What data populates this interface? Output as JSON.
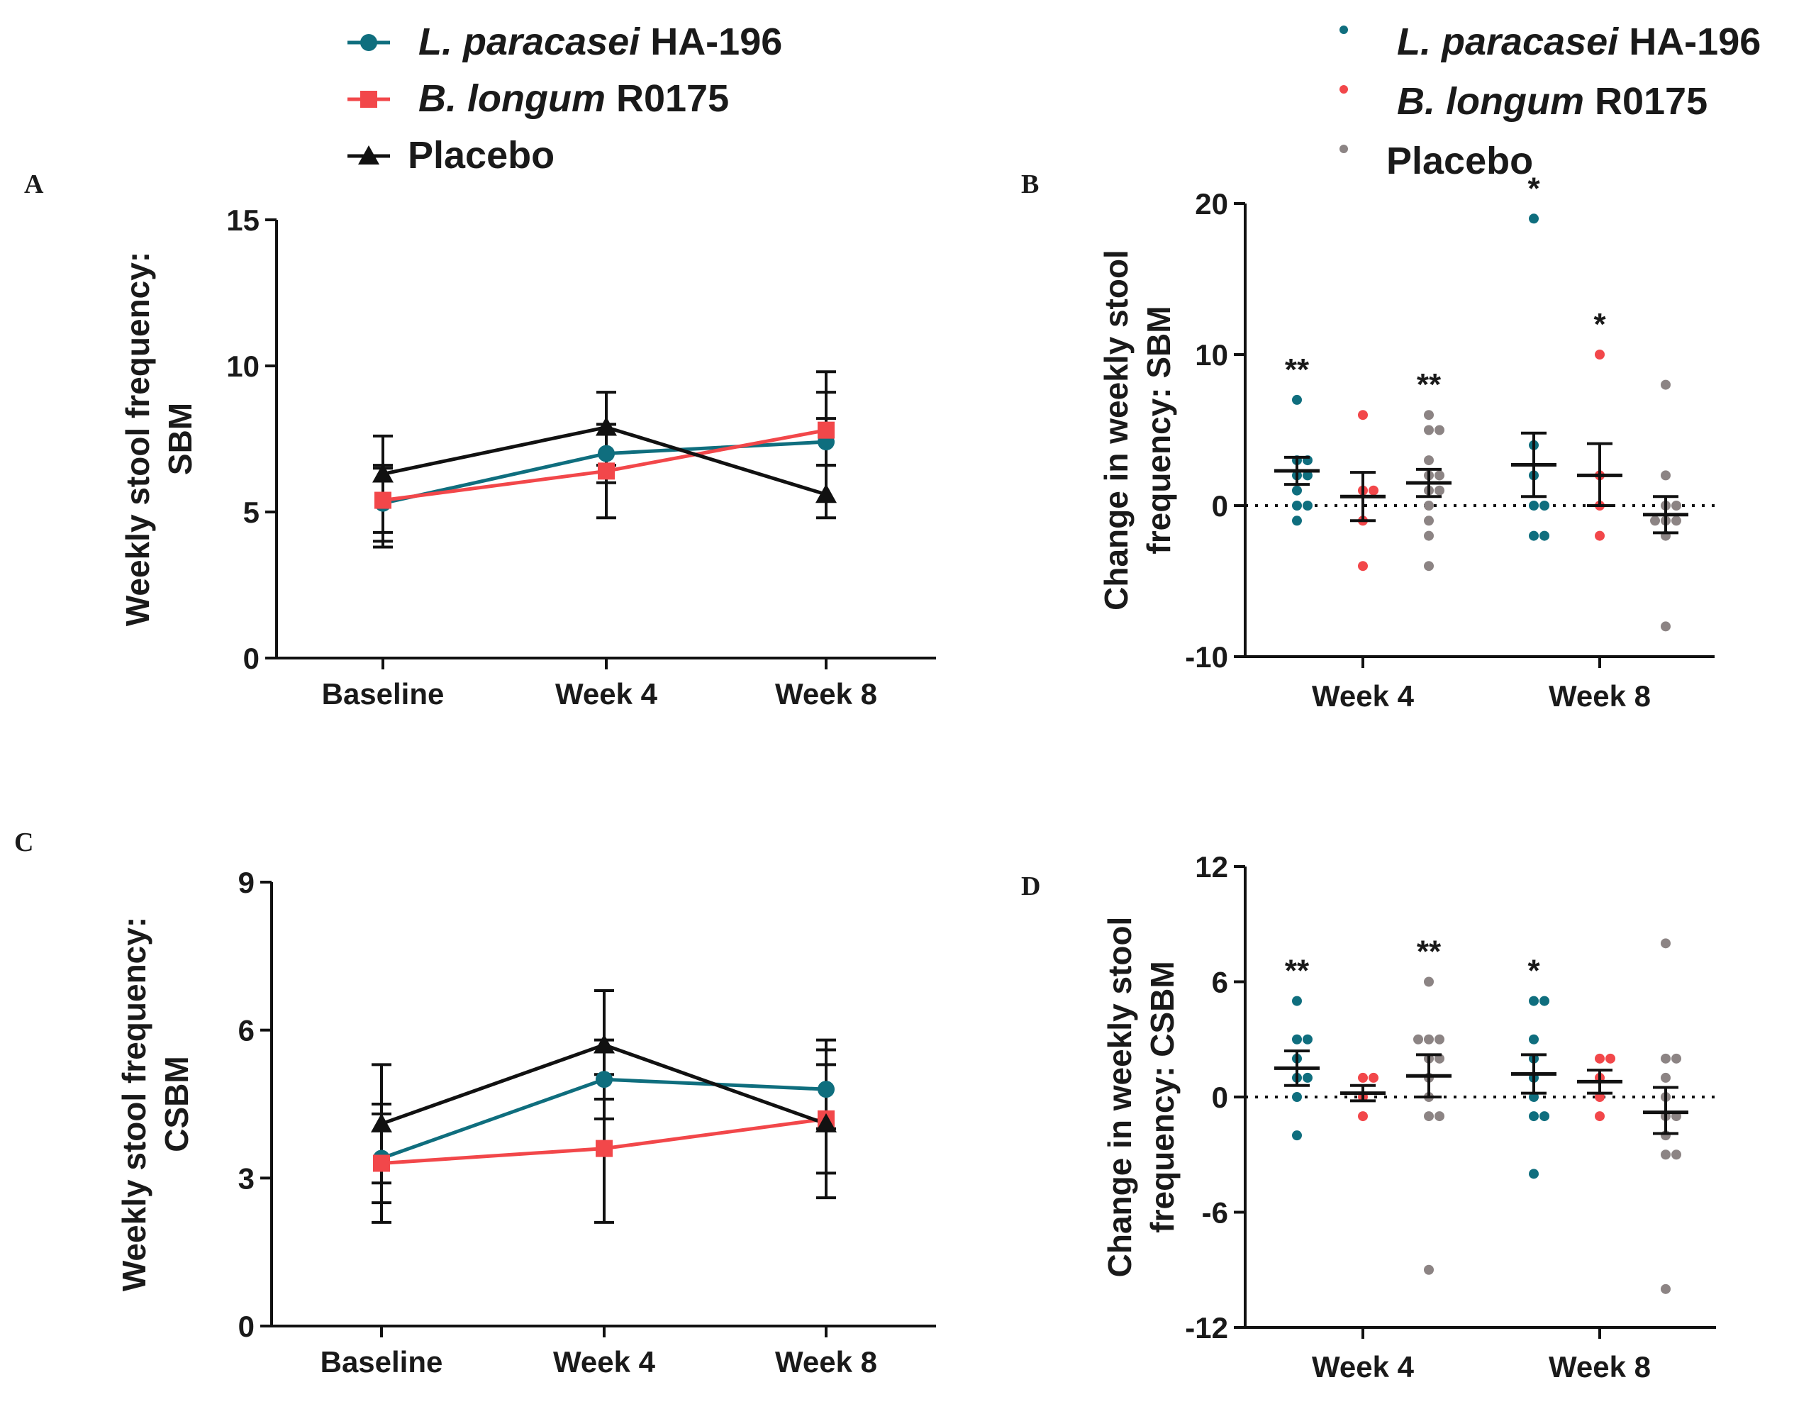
{
  "colors": {
    "la": "#0f6e7e",
    "bl": "#f2474a",
    "pl": "#111111",
    "pl_dot": "#8c8484",
    "axis": "#111111"
  },
  "legend_lines": {
    "items": [
      {
        "italic": "L. paracasei",
        "rest": " HA-196",
        "color": "la",
        "marker": "circle"
      },
      {
        "italic": "B. longum",
        "rest": " R0175",
        "color": "bl",
        "marker": "square"
      },
      {
        "italic": "",
        "rest": "Placebo",
        "color": "pl",
        "marker": "triangle"
      }
    ]
  },
  "legend_dots": {
    "items": [
      {
        "italic": "L. paracasei",
        "rest": " HA-196",
        "color": "la"
      },
      {
        "italic": "B. longum",
        "rest": " R0175",
        "color": "bl"
      },
      {
        "italic": "",
        "rest": "Placebo",
        "color": "pl_dot"
      }
    ]
  },
  "chart_data": [
    {
      "panel": "A",
      "type": "line",
      "ylabel_lines": [
        "Weekly stool frequency:",
        "SBM"
      ],
      "categories": [
        "Baseline",
        "Week 4",
        "Week 8"
      ],
      "ylim": [
        0,
        15
      ],
      "yticks": [
        0,
        5,
        10,
        15
      ],
      "series": [
        {
          "name": "L. paracasei HA-196",
          "color": "la",
          "marker": "circle",
          "values": [
            5.3,
            7.0,
            7.4
          ],
          "err_low": [
            4.0,
            6.0,
            6.6
          ],
          "err_high": [
            6.6,
            8.0,
            8.2
          ]
        },
        {
          "name": "B. longum R0175",
          "color": "bl",
          "marker": "square",
          "values": [
            5.4,
            6.4,
            7.8
          ],
          "err_low": [
            4.3,
            4.8,
            6.6
          ],
          "err_high": [
            6.5,
            8.0,
            9.1
          ]
        },
        {
          "name": "Placebo",
          "color": "pl",
          "marker": "triangle",
          "values": [
            6.3,
            7.9,
            5.6
          ],
          "err_low": [
            3.8,
            6.6,
            4.8
          ],
          "err_high": [
            7.6,
            9.1,
            9.8
          ]
        }
      ]
    },
    {
      "panel": "B",
      "type": "scatter",
      "ylabel_lines": [
        "Change in weekly stool",
        "frequency: SBM"
      ],
      "categories": [
        "Week 4",
        "Week 8"
      ],
      "ylim": [
        -10,
        20
      ],
      "yticks": [
        -10,
        0,
        10,
        20
      ],
      "groups": [
        {
          "cat": 0,
          "offset": -1,
          "color": "la",
          "points": [
            7,
            3,
            3,
            2,
            2,
            1,
            0,
            0,
            -1
          ],
          "mean": 2.3,
          "sem_low": 1.4,
          "sem_high": 3.2,
          "sig": "**"
        },
        {
          "cat": 0,
          "offset": 0,
          "color": "bl",
          "points": [
            6,
            1,
            1,
            -1,
            -4
          ],
          "mean": 0.6,
          "sem_low": -1.0,
          "sem_high": 2.2,
          "sig": ""
        },
        {
          "cat": 0,
          "offset": 1,
          "color": "pl_dot",
          "points": [
            6,
            5,
            5,
            3,
            2,
            2,
            1,
            1,
            0,
            -1,
            -2,
            -4
          ],
          "mean": 1.5,
          "sem_low": 0.6,
          "sem_high": 2.4,
          "sig": "**"
        },
        {
          "cat": 1,
          "offset": -1,
          "color": "la",
          "points": [
            19,
            4,
            2,
            0,
            0,
            -2,
            -2
          ],
          "mean": 2.7,
          "sem_low": 0.6,
          "sem_high": 4.8,
          "sig": "*"
        },
        {
          "cat": 1,
          "offset": 0,
          "color": "bl",
          "points": [
            10,
            2,
            0,
            -2
          ],
          "mean": 2.0,
          "sem_low": 0.0,
          "sem_high": 4.1,
          "sig": "*"
        },
        {
          "cat": 1,
          "offset": 1,
          "color": "pl_dot",
          "points": [
            8,
            2,
            0,
            0,
            -1,
            -1,
            -1,
            -2,
            -8
          ],
          "mean": -0.6,
          "sem_low": -1.8,
          "sem_high": 0.6,
          "sig": ""
        }
      ]
    },
    {
      "panel": "C",
      "type": "line",
      "ylabel_lines": [
        "Weekly stool frequency:",
        "CSBM"
      ],
      "categories": [
        "Baseline",
        "Week 4",
        "Week 8"
      ],
      "ylim": [
        0,
        9
      ],
      "yticks": [
        0,
        3,
        6,
        9
      ],
      "series": [
        {
          "name": "L. paracasei HA-196",
          "color": "la",
          "marker": "circle",
          "values": [
            3.4,
            5.0,
            4.8
          ],
          "err_low": [
            2.5,
            4.2,
            4.0
          ],
          "err_high": [
            4.3,
            5.8,
            5.6
          ]
        },
        {
          "name": "B. longum R0175",
          "color": "bl",
          "marker": "square",
          "values": [
            3.3,
            3.6,
            4.2
          ],
          "err_low": [
            2.1,
            2.1,
            2.6
          ],
          "err_high": [
            4.5,
            5.1,
            5.8
          ]
        },
        {
          "name": "Placebo",
          "color": "pl",
          "marker": "triangle",
          "values": [
            4.1,
            5.7,
            4.1
          ],
          "err_low": [
            2.9,
            4.6,
            3.1
          ],
          "err_high": [
            5.3,
            6.8,
            5.3
          ]
        }
      ]
    },
    {
      "panel": "D",
      "type": "scatter",
      "ylabel_lines": [
        "Change in weekly stool",
        "frequency: CSBM"
      ],
      "categories": [
        "Week 4",
        "Week 8"
      ],
      "ylim": [
        -12,
        12
      ],
      "yticks": [
        -12,
        -6,
        0,
        6,
        12
      ],
      "groups": [
        {
          "cat": 0,
          "offset": -1,
          "color": "la",
          "points": [
            5,
            3,
            3,
            2,
            1,
            1,
            0,
            -2
          ],
          "mean": 1.5,
          "sem_low": 0.6,
          "sem_high": 2.4,
          "sig": "**"
        },
        {
          "cat": 0,
          "offset": 0,
          "color": "bl",
          "points": [
            1,
            1,
            0,
            -1
          ],
          "mean": 0.2,
          "sem_low": -0.2,
          "sem_high": 0.6,
          "sig": ""
        },
        {
          "cat": 0,
          "offset": 1,
          "color": "pl_dot",
          "points": [
            6,
            3,
            3,
            3,
            2,
            2,
            1,
            0,
            -1,
            -1,
            -9
          ],
          "mean": 1.1,
          "sem_low": 0.0,
          "sem_high": 2.2,
          "sig": "**"
        },
        {
          "cat": 1,
          "offset": -1,
          "color": "la",
          "points": [
            5,
            5,
            3,
            2,
            1,
            0,
            -1,
            -1,
            -4
          ],
          "mean": 1.2,
          "sem_low": 0.2,
          "sem_high": 2.2,
          "sig": "*"
        },
        {
          "cat": 1,
          "offset": 0,
          "color": "bl",
          "points": [
            2,
            2,
            1,
            0,
            -1
          ],
          "mean": 0.8,
          "sem_low": 0.2,
          "sem_high": 1.4,
          "sig": ""
        },
        {
          "cat": 1,
          "offset": 1,
          "color": "pl_dot",
          "points": [
            8,
            2,
            2,
            1,
            0,
            -1,
            -1,
            -2,
            -3,
            -3,
            -10
          ],
          "mean": -0.8,
          "sem_low": -1.9,
          "sem_high": 0.5,
          "sig": ""
        }
      ]
    }
  ]
}
